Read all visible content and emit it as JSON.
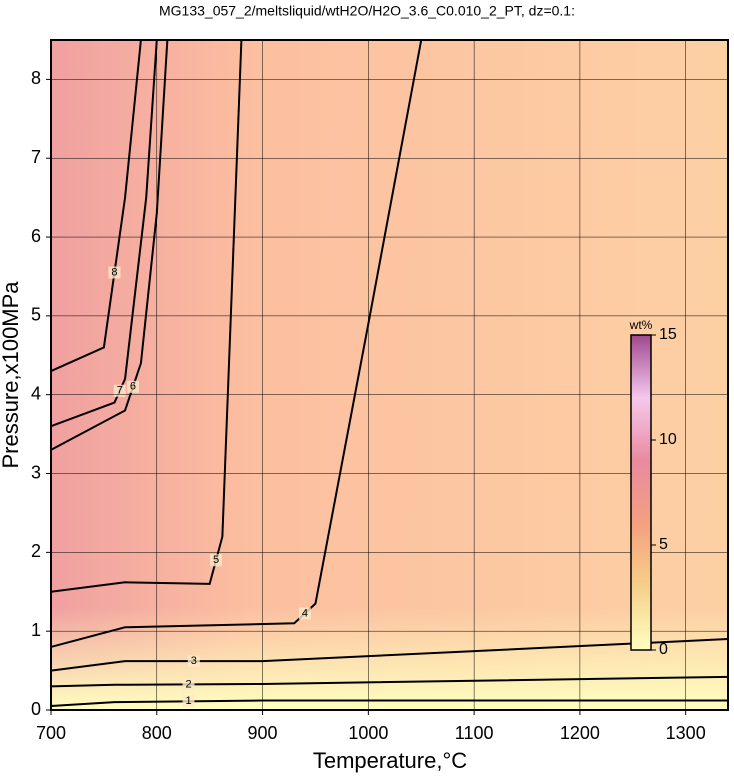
{
  "chart_data": {
    "type": "contour",
    "title": "MG133_057_2/meltsliquid/wtH2O/H2O_3.6_C0.010_2_PT, dz=0.1:",
    "x_label": "Temperature,°C",
    "y_label": "Pressure,x100MPa",
    "xlim": [
      700,
      1340
    ],
    "xticks": [
      700,
      800,
      900,
      1000,
      1100,
      1200,
      1300
    ],
    "ylim": [
      0,
      8.5
    ],
    "yticks": [
      0,
      1,
      2,
      3,
      4,
      5,
      6,
      7,
      8
    ],
    "grid": true,
    "colorbar": {
      "label": "wt%",
      "lim": [
        0,
        15
      ],
      "ticks": [
        0,
        5,
        10,
        15
      ],
      "colors": [
        "#ffffc0",
        "#f6d08a",
        "#f4a080",
        "#e98aa0",
        "#f5c8ec",
        "#a04890"
      ]
    },
    "contours": [
      {
        "level": 1,
        "x": [
          700,
          760,
          900,
          1340
        ],
        "y": [
          0.05,
          0.1,
          0.12,
          0.12
        ]
      },
      {
        "level": 2,
        "x": [
          700,
          760,
          900,
          1340
        ],
        "y": [
          0.3,
          0.32,
          0.33,
          0.42
        ]
      },
      {
        "level": 3,
        "x": [
          700,
          770,
          900,
          1340
        ],
        "y": [
          0.5,
          0.62,
          0.62,
          0.9
        ]
      },
      {
        "level": 4,
        "x": [
          700,
          770,
          930,
          950,
          1000,
          1050
        ],
        "y": [
          0.8,
          1.05,
          1.1,
          1.35,
          4.9,
          8.5
        ]
      },
      {
        "level": 5,
        "x": [
          700,
          770,
          850,
          862,
          870,
          880
        ],
        "y": [
          1.5,
          1.62,
          1.6,
          2.2,
          5.0,
          8.5
        ]
      },
      {
        "level": 6,
        "x": [
          700,
          770,
          785,
          800,
          810
        ],
        "y": [
          3.3,
          3.8,
          4.4,
          6.3,
          8.5
        ]
      },
      {
        "level": 7,
        "x": [
          700,
          760,
          770,
          790,
          800
        ],
        "y": [
          3.6,
          3.9,
          4.2,
          6.5,
          8.5
        ]
      },
      {
        "level": 8,
        "x": [
          700,
          750,
          770,
          785
        ],
        "y": [
          4.3,
          4.6,
          6.5,
          8.5
        ]
      }
    ]
  }
}
